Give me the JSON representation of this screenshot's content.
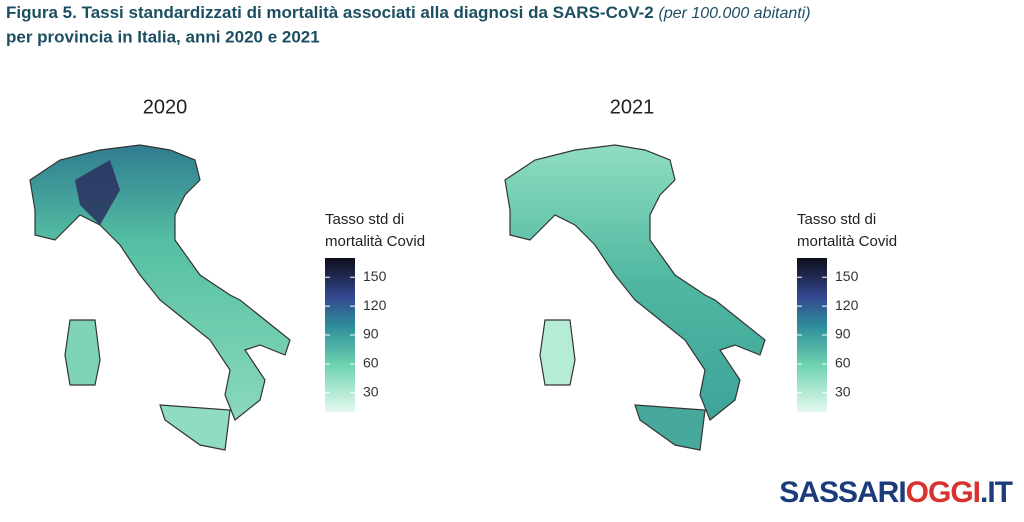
{
  "header": {
    "title": "Figura 5. Tassi standardizzati di mortalità associati alla diagnosi da SARS-CoV-2",
    "title_note": "(per 100.000 abitanti)",
    "title_line2": "per provincia in Italia, anni 2020 e 2021"
  },
  "maps": [
    {
      "title": "2020",
      "legend": {
        "title_line1": "Tasso std di",
        "title_line2": "mortalità Covid",
        "range": [
          10,
          170
        ],
        "ticks": [
          30,
          60,
          90,
          120,
          150
        ]
      }
    },
    {
      "title": "2021",
      "legend": {
        "title_line1": "Tasso std di",
        "title_line2": "mortalità Covid",
        "range": [
          10,
          170
        ],
        "ticks": [
          30,
          60,
          90,
          120,
          150
        ]
      }
    }
  ],
  "watermark": {
    "part1": "SASSARI",
    "part2": "OGGI",
    "part3": ".IT"
  }
}
